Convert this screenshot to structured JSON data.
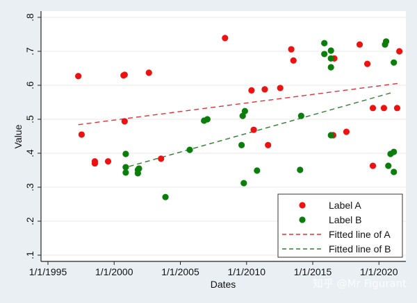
{
  "chart_data": {
    "type": "scatter",
    "title": "",
    "xlabel": "Dates",
    "ylabel": "Value",
    "xlim": [
      "1994-06",
      "2022-05"
    ],
    "ylim": [
      0.08,
      0.82
    ],
    "x_ticks": [
      "1/1/1995",
      "1/1/2000",
      "1/1/2005",
      "1/1/2010",
      "1/1/2015",
      "1/1/2020"
    ],
    "x_tick_years": [
      1995,
      2000,
      2005,
      2010,
      2015,
      2020
    ],
    "y_ticks": [
      0.1,
      0.2,
      0.3,
      0.4,
      0.5,
      0.6,
      0.7,
      0.8
    ],
    "y_tick_labels": [
      ".1",
      ".2",
      ".3",
      ".4",
      ".5",
      ".6",
      ".7",
      ".8"
    ],
    "grid": "horizontal",
    "legend_placement": "bottom-right",
    "series": [
      {
        "name": "Label A",
        "kind": "scatter",
        "color": "#ee1111",
        "points": [
          [
            "1997-04",
            0.627
          ],
          [
            "1997-07",
            0.455
          ],
          [
            "1998-07",
            0.376
          ],
          [
            "1998-07",
            0.37
          ],
          [
            "1999-07",
            0.376
          ],
          [
            "2000-09",
            0.629
          ],
          [
            "2000-10",
            0.631
          ],
          [
            "2000-10",
            0.494
          ],
          [
            "2002-08",
            0.637
          ],
          [
            "2003-07",
            0.384
          ],
          [
            "2008-05",
            0.739
          ],
          [
            "2010-05",
            0.585
          ],
          [
            "2010-07",
            0.469
          ],
          [
            "2011-05",
            0.588
          ],
          [
            "2011-08",
            0.424
          ],
          [
            "2012-07",
            0.592
          ],
          [
            "2013-05",
            0.706
          ],
          [
            "2013-07",
            0.673
          ],
          [
            "2016-08",
            0.679
          ],
          [
            "2016-07",
            0.453
          ],
          [
            "2017-07",
            0.463
          ],
          [
            "2018-07",
            0.72
          ],
          [
            "2019-02",
            0.663
          ],
          [
            "2019-07",
            0.533
          ],
          [
            "2019-07",
            0.363
          ],
          [
            "2020-05",
            0.533
          ],
          [
            "2021-05",
            0.533
          ],
          [
            "2021-07",
            0.7
          ]
        ]
      },
      {
        "name": "Label B",
        "kind": "scatter",
        "color": "#0a7d0a",
        "points": [
          [
            "2000-11",
            0.398
          ],
          [
            "2000-11",
            0.359
          ],
          [
            "2000-11",
            0.343
          ],
          [
            "2001-10",
            0.351
          ],
          [
            "2001-11",
            0.355
          ],
          [
            "2001-10",
            0.341
          ],
          [
            "2003-11",
            0.271
          ],
          [
            "2005-09",
            0.41
          ],
          [
            "2006-10",
            0.496
          ],
          [
            "2007-01",
            0.5
          ],
          [
            "2009-09",
            0.51
          ],
          [
            "2009-11",
            0.524
          ],
          [
            "2009-08",
            0.424
          ],
          [
            "2009-10",
            0.312
          ],
          [
            "2010-10",
            0.349
          ],
          [
            "2014-02",
            0.51
          ],
          [
            "2014-01",
            0.351
          ],
          [
            "2015-11",
            0.724
          ],
          [
            "2015-11",
            0.692
          ],
          [
            "2016-05",
            0.702
          ],
          [
            "2016-05",
            0.679
          ],
          [
            "2016-05",
            0.653
          ],
          [
            "2016-05",
            0.453
          ],
          [
            "2020-06",
            0.72
          ],
          [
            "2020-07",
            0.729
          ],
          [
            "2021-02",
            0.667
          ],
          [
            "2020-09",
            0.363
          ],
          [
            "2020-11",
            0.398
          ],
          [
            "2021-02",
            0.404
          ],
          [
            "2021-02",
            0.345
          ]
        ]
      },
      {
        "name": "Fitted line of A",
        "kind": "line",
        "style": "dashed",
        "color": "#e0303a",
        "points": [
          [
            "1997-04",
            0.484
          ],
          [
            "2021-07",
            0.606
          ]
        ]
      },
      {
        "name": "Fitted line of B",
        "kind": "line",
        "style": "dashed",
        "color": "#2e7d2e",
        "points": [
          [
            "2001-02",
            0.361
          ],
          [
            "2021-02",
            0.58
          ]
        ]
      }
    ]
  },
  "watermark": "知乎 @Mr Figurant"
}
